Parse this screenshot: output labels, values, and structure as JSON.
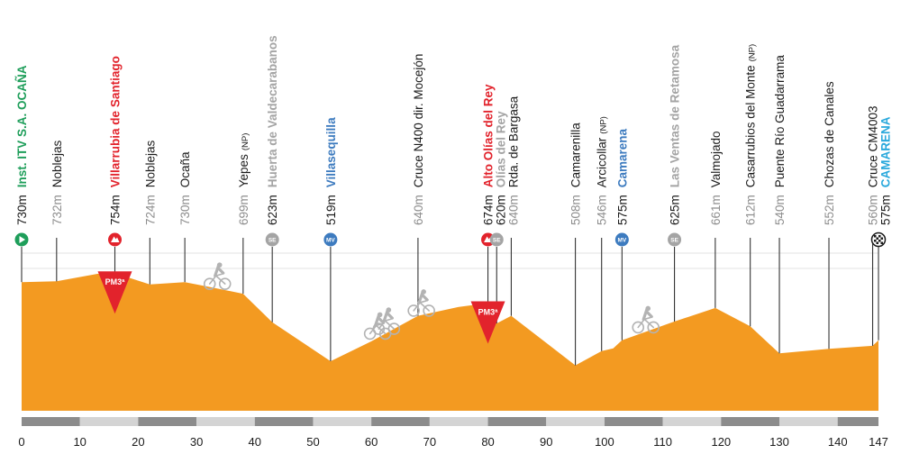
{
  "colors": {
    "profile_fill": "#f39a21",
    "start_green": "#1e9e5a",
    "climb_red": "#e2232c",
    "sprint_blue": "#3d7bbf",
    "special_grey": "#a4a4a4",
    "finish_blue": "#29a8dc",
    "label_dark": "#1a1a1a",
    "label_grey": "#8e8e8e",
    "scale_dark": "#8c8c8c",
    "scale_light": "#d4d4d4"
  },
  "chart_data": {
    "type": "area",
    "xlabel": "",
    "ylabel": "",
    "xlim": [
      0,
      147
    ],
    "ticks": [
      "0",
      "10",
      "20",
      "30",
      "40",
      "50",
      "60",
      "70",
      "80",
      "90",
      "100",
      "110",
      "120",
      "130",
      "140",
      "147"
    ],
    "profile": [
      [
        0,
        730
      ],
      [
        6,
        732
      ],
      [
        13,
        752
      ],
      [
        16,
        754
      ],
      [
        22,
        724
      ],
      [
        28,
        730
      ],
      [
        32,
        718
      ],
      [
        38,
        699
      ],
      [
        43,
        623
      ],
      [
        53,
        519
      ],
      [
        60,
        572
      ],
      [
        68,
        640
      ],
      [
        75,
        664
      ],
      [
        80,
        674
      ],
      [
        81.5,
        620
      ],
      [
        84,
        640
      ],
      [
        95,
        508
      ],
      [
        99.5,
        546
      ],
      [
        101.5,
        553
      ],
      [
        103,
        575
      ],
      [
        112,
        625
      ],
      [
        119,
        661
      ],
      [
        125,
        612
      ],
      [
        130,
        540
      ],
      [
        138.5,
        552
      ],
      [
        146,
        560
      ],
      [
        147,
        575
      ]
    ],
    "points": [
      {
        "km": 0,
        "name": "Inst. ITV S.A. OCAÑA",
        "alt": "730m",
        "kind": "start",
        "icon": "start-flag-icon"
      },
      {
        "km": 6,
        "name": "Noblejas",
        "alt": "732m",
        "kind": "normal"
      },
      {
        "km": 16,
        "name": "Villarrubia de Santiago",
        "alt": "754m",
        "kind": "climb",
        "icon": "mountain-icon"
      },
      {
        "km": 22,
        "name": "Noblejas",
        "alt": "724m",
        "kind": "normal"
      },
      {
        "km": 28,
        "name": "Ocaña",
        "alt": "730m",
        "kind": "normal"
      },
      {
        "km": 38,
        "name": "Yepes",
        "np": "(NP)",
        "alt": "699m",
        "kind": "normal"
      },
      {
        "km": 43,
        "name": "Huerta de Valdecarabanos",
        "alt": "623m",
        "kind": "special",
        "icon": "special-sprint-icon",
        "badge": "SE"
      },
      {
        "km": 53,
        "name": "Villasequilla",
        "alt": "519m",
        "kind": "sprint",
        "icon": "sprint-icon",
        "badge": "MV"
      },
      {
        "km": 68,
        "name": "Cruce N400 dir. Mocejón",
        "alt": "640m",
        "kind": "normal"
      },
      {
        "km": 80,
        "name": "Alto Olías del Rey",
        "alt": "674m",
        "kind": "climb",
        "icon": "mountain-icon"
      },
      {
        "km": 81.5,
        "name": "Olías del Rey",
        "alt": "620m",
        "kind": "special",
        "icon": "special-sprint-icon",
        "badge": "SE"
      },
      {
        "km": 84,
        "name": "Rda. de Bargasa",
        "alt": "640m",
        "kind": "normal"
      },
      {
        "km": 95,
        "name": "Camarenilla",
        "alt": "508m",
        "kind": "normal"
      },
      {
        "km": 99.5,
        "name": "Arcicollar",
        "np": "(NP)",
        "alt": "546m",
        "kind": "normal"
      },
      {
        "km": 103,
        "name": "Camarena",
        "alt": "575m",
        "kind": "sprint",
        "icon": "sprint-icon",
        "badge": "MV"
      },
      {
        "km": 112,
        "name": "Las Ventas de Retamosa",
        "alt": "625m",
        "kind": "special",
        "icon": "special-sprint-icon",
        "badge": "SE"
      },
      {
        "km": 119,
        "name": "Valmojado",
        "alt": "661m",
        "kind": "normal"
      },
      {
        "km": 125,
        "name": "Casarrubios del Monte",
        "np": "(NP)",
        "alt": "612m",
        "kind": "normal"
      },
      {
        "km": 130,
        "name": "Puente Río Guadarrama",
        "alt": "540m",
        "kind": "normal"
      },
      {
        "km": 138.5,
        "name": "Chozas de Canales",
        "alt": "552m",
        "kind": "normal"
      },
      {
        "km": 146,
        "name": "Cruce CM4003",
        "alt": "560m",
        "kind": "normal"
      },
      {
        "km": 147,
        "name": "CAMARENA",
        "alt": "575m",
        "kind": "finish",
        "icon": "finish-flag-icon"
      }
    ],
    "climbs": [
      {
        "km": 16,
        "label": "PM3ª"
      },
      {
        "km": 80,
        "label": "PM3ª"
      }
    ],
    "cyclists": [
      33.5,
      68.5,
      61,
      62.5,
      107
    ]
  }
}
